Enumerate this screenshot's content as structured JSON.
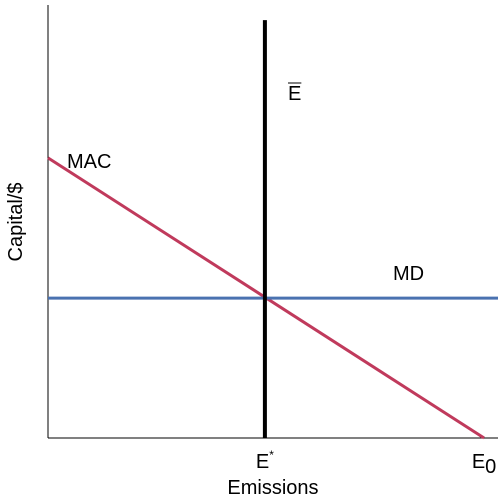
{
  "chart_data": {
    "type": "line",
    "x_label": "Emissions",
    "y_label": "Capital/$",
    "xlim": [
      0,
      100
    ],
    "ylim": [
      0,
      100
    ],
    "xticks": [
      {
        "value": 48.2,
        "label": "E",
        "superscript": "*"
      },
      {
        "value": 96.9,
        "label": "E",
        "subscript": "0"
      }
    ],
    "series": [
      {
        "name": "MAC",
        "color": "#c03a5c",
        "x": [
          0,
          96.9
        ],
        "values": [
          64.7,
          0
        ]
      },
      {
        "name": "MD",
        "color": "#4a72b0",
        "x": [
          0,
          100
        ],
        "values": [
          32.3,
          32.3
        ]
      },
      {
        "name": "E",
        "overline": true,
        "color": "#000000",
        "x": [
          48.2,
          48.2
        ],
        "values": [
          0,
          96.5
        ]
      }
    ]
  }
}
